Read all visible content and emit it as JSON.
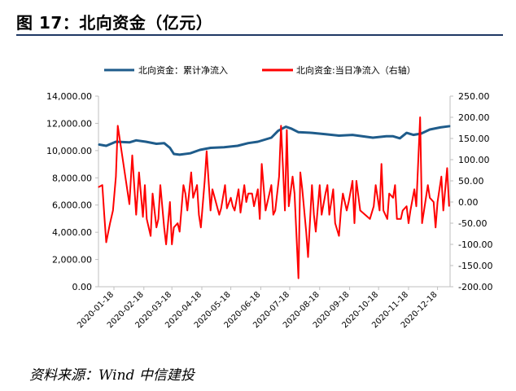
{
  "header": {
    "title": "图 17：北向资金（亿元）"
  },
  "footer": {
    "source": "资料来源：Wind 中信建投"
  },
  "chart_data": {
    "type": "line",
    "legend": {
      "placement": "top",
      "items": [
        "北向资金：累计净流入",
        "北向资金:当日净流入（右轴）"
      ]
    },
    "colors": {
      "cumulative": "#1f5c8b",
      "daily": "#ff0000"
    },
    "x_tick_labels": [
      "2020-01-18",
      "2020-02-18",
      "2020-03-18",
      "2020-04-18",
      "2020-05-18",
      "2020-06-18",
      "2020-07-18",
      "2020-08-18",
      "2020-09-18",
      "2020-10-18",
      "2020-11-18",
      "2020-12-18"
    ],
    "xlim": [
      "2020-01-02",
      "2020-12-31"
    ],
    "y_left": {
      "lim": [
        0,
        14000
      ],
      "ticks": [
        0,
        2000,
        4000,
        6000,
        8000,
        10000,
        12000,
        14000
      ],
      "tick_labels": [
        "0.00",
        "2,000.00",
        "4,000.00",
        "6,000.00",
        "8,000.00",
        "10,000.00",
        "12,000.00",
        "14,000.00"
      ]
    },
    "y_right": {
      "lim": [
        -200,
        250
      ],
      "ticks": [
        -200,
        -150,
        -100,
        -50,
        0,
        50,
        100,
        150,
        200,
        250
      ],
      "tick_labels": [
        "-200.00",
        "-150.00",
        "-100.00",
        "-50.00",
        "0.00",
        "50.00",
        "100.00",
        "150.00",
        "200.00",
        "250.00"
      ]
    },
    "grid": false,
    "series": [
      {
        "name": "北向资金：累计净流入",
        "axis": "left",
        "x": [
          "2020-01-02",
          "2020-01-10",
          "2020-01-20",
          "2020-02-03",
          "2020-02-10",
          "2020-02-20",
          "2020-03-02",
          "2020-03-10",
          "2020-03-16",
          "2020-03-20",
          "2020-03-26",
          "2020-04-06",
          "2020-04-16",
          "2020-04-27",
          "2020-05-11",
          "2020-05-25",
          "2020-06-05",
          "2020-06-15",
          "2020-06-29",
          "2020-07-06",
          "2020-07-14",
          "2020-07-20",
          "2020-07-27",
          "2020-08-10",
          "2020-08-24",
          "2020-09-07",
          "2020-09-21",
          "2020-10-12",
          "2020-10-26",
          "2020-11-02",
          "2020-11-09",
          "2020-11-16",
          "2020-11-23",
          "2020-12-01",
          "2020-12-10",
          "2020-12-21",
          "2020-12-31"
        ],
        "values": [
          10450,
          10350,
          10650,
          10600,
          10750,
          10650,
          10500,
          10550,
          10200,
          9750,
          9700,
          9800,
          10050,
          10200,
          10250,
          10350,
          10550,
          10650,
          10950,
          11450,
          11750,
          11600,
          11350,
          11300,
          11200,
          11100,
          11150,
          10950,
          11050,
          11050,
          10900,
          11300,
          11150,
          11250,
          11550,
          11700,
          11800
        ]
      },
      {
        "name": "北向资金:当日净流入（右轴）",
        "axis": "right",
        "x": [
          "2020-01-02",
          "2020-01-06",
          "2020-01-08",
          "2020-01-10",
          "2020-01-14",
          "2020-01-17",
          "2020-01-20",
          "2020-01-22",
          "2020-02-03",
          "2020-02-06",
          "2020-02-10",
          "2020-02-13",
          "2020-02-17",
          "2020-02-19",
          "2020-02-21",
          "2020-02-25",
          "2020-02-27",
          "2020-03-02",
          "2020-03-04",
          "2020-03-06",
          "2020-03-10",
          "2020-03-12",
          "2020-03-16",
          "2020-03-18",
          "2020-03-20",
          "2020-03-24",
          "2020-03-26",
          "2020-03-30",
          "2020-04-01",
          "2020-04-03",
          "2020-04-07",
          "2020-04-09",
          "2020-04-13",
          "2020-04-15",
          "2020-04-17",
          "2020-04-21",
          "2020-04-23",
          "2020-04-27",
          "2020-04-29",
          "2020-05-06",
          "2020-05-08",
          "2020-05-12",
          "2020-05-14",
          "2020-05-18",
          "2020-05-20",
          "2020-05-22",
          "2020-05-26",
          "2020-05-28",
          "2020-06-01",
          "2020-06-03",
          "2020-06-05",
          "2020-06-09",
          "2020-06-11",
          "2020-06-15",
          "2020-06-17",
          "2020-06-19",
          "2020-06-23",
          "2020-06-29",
          "2020-07-01",
          "2020-07-03",
          "2020-07-07",
          "2020-07-09",
          "2020-07-13",
          "2020-07-15",
          "2020-07-17",
          "2020-07-21",
          "2020-07-23",
          "2020-07-27",
          "2020-07-29",
          "2020-07-31",
          "2020-08-04",
          "2020-08-06",
          "2020-08-10",
          "2020-08-12",
          "2020-08-14",
          "2020-08-18",
          "2020-08-20",
          "2020-08-24",
          "2020-08-26",
          "2020-08-28",
          "2020-09-01",
          "2020-09-03",
          "2020-09-07",
          "2020-09-09",
          "2020-09-11",
          "2020-09-15",
          "2020-09-17",
          "2020-09-21",
          "2020-09-23",
          "2020-09-25",
          "2020-09-29",
          "2020-10-09",
          "2020-10-13",
          "2020-10-15",
          "2020-10-19",
          "2020-10-21",
          "2020-10-23",
          "2020-10-27",
          "2020-10-29",
          "2020-11-02",
          "2020-11-04",
          "2020-11-06",
          "2020-11-10",
          "2020-11-12",
          "2020-11-16",
          "2020-11-18",
          "2020-11-20",
          "2020-11-24",
          "2020-11-26",
          "2020-11-30",
          "2020-12-02",
          "2020-12-04",
          "2020-12-08",
          "2020-12-10",
          "2020-12-14",
          "2020-12-16",
          "2020-12-18",
          "2020-12-22",
          "2020-12-24",
          "2020-12-28",
          "2020-12-30"
        ],
        "values": [
          35,
          40,
          -30,
          -95,
          -50,
          -20,
          60,
          180,
          -5,
          110,
          -30,
          70,
          -35,
          40,
          -40,
          -80,
          20,
          -60,
          -40,
          40,
          -60,
          -100,
          0,
          -100,
          -60,
          -50,
          -70,
          40,
          20,
          -20,
          70,
          10,
          40,
          -30,
          -60,
          50,
          120,
          -20,
          30,
          -30,
          -15,
          40,
          -15,
          10,
          -10,
          -20,
          30,
          -25,
          40,
          0,
          20,
          20,
          -10,
          30,
          -40,
          90,
          -20,
          40,
          -30,
          -20,
          60,
          180,
          -20,
          170,
          -10,
          60,
          20,
          -180,
          70,
          30,
          -70,
          -130,
          40,
          -30,
          -70,
          40,
          -30,
          20,
          40,
          -30,
          30,
          -50,
          -80,
          -20,
          20,
          -20,
          0,
          50,
          -50,
          50,
          -20,
          -40,
          -10,
          40,
          -20,
          90,
          -20,
          -40,
          20,
          10,
          40,
          -40,
          -40,
          -20,
          -10,
          -50,
          -20,
          30,
          -10,
          200,
          -50,
          -20,
          40,
          10,
          0,
          -60,
          0,
          60,
          -20,
          80,
          -10
        ]
      }
    ]
  }
}
